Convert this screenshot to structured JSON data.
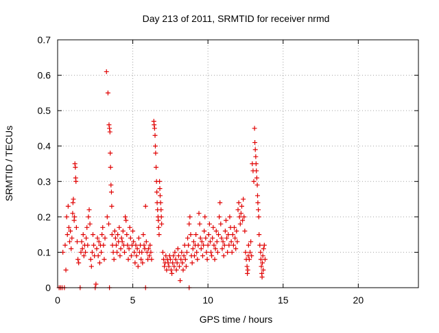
{
  "chart_data": {
    "type": "scatter",
    "title": "Day 213 of 2011, SRMTID for receiver nrmd",
    "xlabel": "GPS time / hours",
    "ylabel": "SRMTID / TECUs",
    "xlim": [
      0,
      24
    ],
    "ylim": [
      0,
      0.7
    ],
    "xticks": [
      0,
      5,
      10,
      15,
      20
    ],
    "xtick_labels": [
      "0",
      "5",
      "10",
      "15",
      "20"
    ],
    "yticks": [
      0,
      0.1,
      0.2,
      0.3,
      0.4,
      0.5,
      0.6,
      0.7
    ],
    "ytick_labels": [
      "0",
      "0.1",
      "0.2",
      "0.3",
      "0.4",
      "0.5",
      "0.6",
      "0.7"
    ],
    "grid": true,
    "marker": "+",
    "color": "#e00000",
    "series": [
      {
        "points": [
          [
            0.1,
            0.0
          ],
          [
            0.2,
            0.0
          ],
          [
            0.3,
            0.0
          ],
          [
            0.45,
            0.0
          ],
          [
            1.5,
            0.0
          ],
          [
            2.5,
            0.0
          ],
          [
            3.45,
            0.0
          ],
          [
            5.85,
            0.0
          ],
          [
            8.75,
            0.0
          ],
          [
            0.35,
            0.1
          ],
          [
            0.5,
            0.12
          ],
          [
            0.55,
            0.05
          ],
          [
            0.6,
            0.2
          ],
          [
            0.65,
            0.15
          ],
          [
            0.7,
            0.23
          ],
          [
            0.75,
            0.17
          ],
          [
            0.8,
            0.13
          ],
          [
            0.85,
            0.16
          ],
          [
            0.9,
            0.11
          ],
          [
            0.95,
            0.14
          ],
          [
            1.0,
            0.21
          ],
          [
            1.02,
            0.24
          ],
          [
            1.05,
            0.25
          ],
          [
            1.1,
            0.19
          ],
          [
            1.12,
            0.2
          ],
          [
            1.15,
            0.35
          ],
          [
            1.18,
            0.34
          ],
          [
            1.2,
            0.31
          ],
          [
            1.22,
            0.3
          ],
          [
            1.25,
            0.17
          ],
          [
            1.3,
            0.13
          ],
          [
            1.35,
            0.08
          ],
          [
            1.4,
            0.07
          ],
          [
            1.55,
            0.1
          ],
          [
            1.6,
            0.13
          ],
          [
            1.65,
            0.11
          ],
          [
            1.7,
            0.15
          ],
          [
            1.75,
            0.09
          ],
          [
            1.8,
            0.12
          ],
          [
            1.85,
            0.1
          ],
          [
            1.9,
            0.14
          ],
          [
            1.95,
            0.17
          ],
          [
            2.0,
            0.12
          ],
          [
            2.05,
            0.2
          ],
          [
            2.1,
            0.22
          ],
          [
            2.15,
            0.18
          ],
          [
            2.2,
            0.08
          ],
          [
            2.25,
            0.06
          ],
          [
            2.3,
            0.1
          ],
          [
            2.35,
            0.15
          ],
          [
            2.4,
            0.12
          ],
          [
            2.45,
            0.09
          ],
          [
            2.55,
            0.01
          ],
          [
            2.6,
            0.11
          ],
          [
            2.65,
            0.14
          ],
          [
            2.7,
            0.09
          ],
          [
            2.75,
            0.13
          ],
          [
            2.8,
            0.07
          ],
          [
            2.85,
            0.12
          ],
          [
            2.9,
            0.1
          ],
          [
            2.95,
            0.15
          ],
          [
            3.0,
            0.17
          ],
          [
            3.05,
            0.12
          ],
          [
            3.1,
            0.08
          ],
          [
            3.15,
            0.14
          ],
          [
            3.25,
            0.61
          ],
          [
            3.35,
            0.55
          ],
          [
            3.42,
            0.46
          ],
          [
            3.45,
            0.45
          ],
          [
            3.48,
            0.44
          ],
          [
            3.5,
            0.38
          ],
          [
            3.52,
            0.34
          ],
          [
            3.55,
            0.29
          ],
          [
            3.58,
            0.27
          ],
          [
            3.6,
            0.23
          ],
          [
            3.3,
            0.2
          ],
          [
            3.4,
            0.18
          ],
          [
            3.62,
            0.15
          ],
          [
            3.65,
            0.12
          ],
          [
            3.7,
            0.1
          ],
          [
            3.75,
            0.08
          ],
          [
            3.8,
            0.16
          ],
          [
            3.85,
            0.14
          ],
          [
            3.9,
            0.12
          ],
          [
            3.95,
            0.1
          ],
          [
            4.0,
            0.15
          ],
          [
            4.05,
            0.13
          ],
          [
            4.1,
            0.17
          ],
          [
            4.15,
            0.09
          ],
          [
            4.2,
            0.11
          ],
          [
            4.25,
            0.14
          ],
          [
            4.3,
            0.13
          ],
          [
            4.35,
            0.16
          ],
          [
            4.4,
            0.12
          ],
          [
            4.45,
            0.1
          ],
          [
            4.5,
            0.2
          ],
          [
            4.55,
            0.19
          ],
          [
            4.6,
            0.15
          ],
          [
            4.65,
            0.12
          ],
          [
            4.7,
            0.08
          ],
          [
            4.75,
            0.11
          ],
          [
            4.8,
            0.17
          ],
          [
            4.85,
            0.14
          ],
          [
            4.9,
            0.09
          ],
          [
            4.95,
            0.12
          ],
          [
            5.0,
            0.16
          ],
          [
            5.05,
            0.13
          ],
          [
            5.1,
            0.1
          ],
          [
            5.15,
            0.07
          ],
          [
            5.2,
            0.12
          ],
          [
            5.25,
            0.09
          ],
          [
            5.3,
            0.11
          ],
          [
            5.35,
            0.06
          ],
          [
            5.4,
            0.14
          ],
          [
            5.45,
            0.1
          ],
          [
            5.5,
            0.12
          ],
          [
            5.55,
            0.08
          ],
          [
            5.6,
            0.1
          ],
          [
            5.65,
            0.07
          ],
          [
            5.7,
            0.15
          ],
          [
            5.75,
            0.12
          ],
          [
            5.8,
            0.11
          ],
          [
            5.85,
            0.23
          ],
          [
            5.9,
            0.13
          ],
          [
            5.95,
            0.1
          ],
          [
            6.0,
            0.08
          ],
          [
            6.05,
            0.11
          ],
          [
            6.1,
            0.09
          ],
          [
            6.15,
            0.12
          ],
          [
            6.2,
            0.1
          ],
          [
            6.25,
            0.08
          ],
          [
            6.4,
            0.47
          ],
          [
            6.42,
            0.46
          ],
          [
            6.45,
            0.45
          ],
          [
            6.48,
            0.43
          ],
          [
            6.5,
            0.4
          ],
          [
            6.52,
            0.38
          ],
          [
            6.55,
            0.34
          ],
          [
            6.58,
            0.3
          ],
          [
            6.6,
            0.27
          ],
          [
            6.62,
            0.24
          ],
          [
            6.65,
            0.22
          ],
          [
            6.68,
            0.2
          ],
          [
            6.7,
            0.19
          ],
          [
            6.72,
            0.17
          ],
          [
            6.75,
            0.15
          ],
          [
            6.78,
            0.3
          ],
          [
            6.8,
            0.28
          ],
          [
            6.82,
            0.26
          ],
          [
            6.85,
            0.24
          ],
          [
            6.88,
            0.22
          ],
          [
            6.9,
            0.2
          ],
          [
            6.92,
            0.18
          ],
          [
            7.0,
            0.1
          ],
          [
            7.05,
            0.08
          ],
          [
            7.1,
            0.06
          ],
          [
            7.15,
            0.07
          ],
          [
            7.2,
            0.09
          ],
          [
            7.25,
            0.05
          ],
          [
            7.3,
            0.08
          ],
          [
            7.35,
            0.07
          ],
          [
            7.4,
            0.06
          ],
          [
            7.45,
            0.09
          ],
          [
            7.5,
            0.08
          ],
          [
            7.55,
            0.05
          ],
          [
            7.6,
            0.04
          ],
          [
            7.65,
            0.07
          ],
          [
            7.7,
            0.09
          ],
          [
            7.75,
            0.06
          ],
          [
            7.8,
            0.1
          ],
          [
            7.85,
            0.08
          ],
          [
            7.9,
            0.05
          ],
          [
            7.95,
            0.07
          ],
          [
            8.0,
            0.11
          ],
          [
            8.05,
            0.09
          ],
          [
            8.1,
            0.06
          ],
          [
            8.15,
            0.02
          ],
          [
            8.2,
            0.08
          ],
          [
            8.25,
            0.1
          ],
          [
            8.3,
            0.07
          ],
          [
            8.35,
            0.05
          ],
          [
            8.4,
            0.09
          ],
          [
            8.45,
            0.12
          ],
          [
            8.5,
            0.08
          ],
          [
            8.55,
            0.06
          ],
          [
            8.6,
            0.1
          ],
          [
            8.65,
            0.14
          ],
          [
            8.7,
            0.12
          ],
          [
            8.75,
            0.18
          ],
          [
            8.8,
            0.2
          ],
          [
            8.85,
            0.15
          ],
          [
            8.9,
            0.09
          ],
          [
            8.95,
            0.07
          ],
          [
            9.0,
            0.11
          ],
          [
            9.05,
            0.13
          ],
          [
            9.1,
            0.09
          ],
          [
            9.15,
            0.12
          ],
          [
            9.2,
            0.15
          ],
          [
            9.25,
            0.1
          ],
          [
            9.3,
            0.08
          ],
          [
            9.35,
            0.12
          ],
          [
            9.4,
            0.21
          ],
          [
            9.45,
            0.18
          ],
          [
            9.5,
            0.14
          ],
          [
            9.55,
            0.11
          ],
          [
            9.6,
            0.13
          ],
          [
            9.65,
            0.09
          ],
          [
            9.7,
            0.12
          ],
          [
            9.75,
            0.16
          ],
          [
            9.8,
            0.2
          ],
          [
            9.85,
            0.14
          ],
          [
            9.9,
            0.1
          ],
          [
            9.95,
            0.08
          ],
          [
            10.0,
            0.12
          ],
          [
            10.05,
            0.15
          ],
          [
            10.1,
            0.18
          ],
          [
            10.15,
            0.13
          ],
          [
            10.2,
            0.1
          ],
          [
            10.25,
            0.09
          ],
          [
            10.3,
            0.14
          ],
          [
            10.35,
            0.17
          ],
          [
            10.4,
            0.12
          ],
          [
            10.45,
            0.08
          ],
          [
            10.5,
            0.11
          ],
          [
            10.55,
            0.16
          ],
          [
            10.6,
            0.13
          ],
          [
            10.65,
            0.1
          ],
          [
            10.7,
            0.15
          ],
          [
            10.75,
            0.2
          ],
          [
            10.8,
            0.24
          ],
          [
            10.85,
            0.18
          ],
          [
            10.9,
            0.14
          ],
          [
            10.95,
            0.11
          ],
          [
            11.0,
            0.13
          ],
          [
            11.05,
            0.09
          ],
          [
            11.1,
            0.12
          ],
          [
            11.15,
            0.16
          ],
          [
            11.2,
            0.19
          ],
          [
            11.25,
            0.14
          ],
          [
            11.3,
            0.1
          ],
          [
            11.35,
            0.15
          ],
          [
            11.4,
            0.12
          ],
          [
            11.45,
            0.2
          ],
          [
            11.5,
            0.17
          ],
          [
            11.55,
            0.13
          ],
          [
            11.6,
            0.1
          ],
          [
            11.65,
            0.15
          ],
          [
            11.7,
            0.12
          ],
          [
            11.75,
            0.17
          ],
          [
            11.8,
            0.14
          ],
          [
            11.85,
            0.11
          ],
          [
            11.9,
            0.16
          ],
          [
            11.95,
            0.13
          ],
          [
            12.0,
            0.22
          ],
          [
            12.05,
            0.24
          ],
          [
            12.1,
            0.2
          ],
          [
            12.15,
            0.18
          ],
          [
            12.2,
            0.21
          ],
          [
            12.25,
            0.23
          ],
          [
            12.3,
            0.19
          ],
          [
            12.35,
            0.25
          ],
          [
            12.4,
            0.2
          ],
          [
            12.45,
            0.16
          ],
          [
            12.5,
            0.1
          ],
          [
            12.55,
            0.08
          ],
          [
            12.6,
            0.06
          ],
          [
            12.62,
            0.04
          ],
          [
            12.65,
            0.05
          ],
          [
            12.68,
            0.09
          ],
          [
            12.7,
            0.12
          ],
          [
            12.75,
            0.08
          ],
          [
            12.8,
            0.1
          ],
          [
            12.85,
            0.13
          ],
          [
            12.9,
            0.09
          ],
          [
            12.95,
            0.35
          ],
          [
            13.0,
            0.33
          ],
          [
            13.05,
            0.3
          ],
          [
            13.1,
            0.45
          ],
          [
            13.12,
            0.41
          ],
          [
            13.15,
            0.39
          ],
          [
            13.18,
            0.37
          ],
          [
            13.2,
            0.35
          ],
          [
            13.22,
            0.33
          ],
          [
            13.25,
            0.31
          ],
          [
            13.28,
            0.29
          ],
          [
            13.3,
            0.26
          ],
          [
            13.32,
            0.24
          ],
          [
            13.35,
            0.22
          ],
          [
            13.38,
            0.2
          ],
          [
            13.4,
            0.15
          ],
          [
            13.45,
            0.12
          ],
          [
            13.5,
            0.1
          ],
          [
            13.52,
            0.08
          ],
          [
            13.55,
            0.06
          ],
          [
            13.58,
            0.04
          ],
          [
            13.6,
            0.03
          ],
          [
            13.62,
            0.07
          ],
          [
            13.65,
            0.09
          ],
          [
            13.68,
            0.05
          ],
          [
            13.7,
            0.11
          ],
          [
            13.75,
            0.12
          ],
          [
            13.8,
            0.08
          ]
        ]
      }
    ]
  }
}
